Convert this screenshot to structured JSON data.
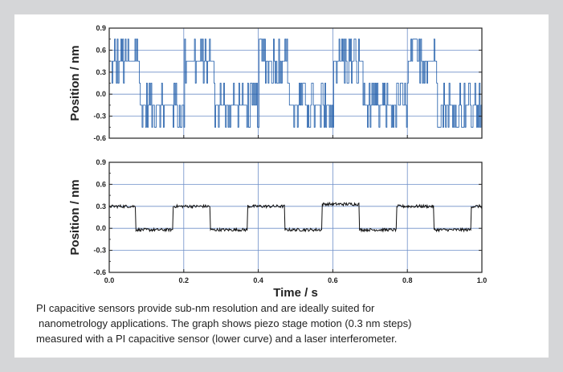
{
  "chart_data": [
    {
      "type": "line",
      "ylabel": "Position / nm",
      "xlim": [
        0.0,
        1.0
      ],
      "ylim": [
        -0.6,
        0.9
      ],
      "yticks": [
        -0.6,
        -0.3,
        0.0,
        0.3,
        0.6,
        0.9
      ],
      "grid": true,
      "color": "#1c5aa8",
      "series": [
        {
          "description_of_signal": "quantized noisy step signal, levels ~0.45 (high) and ~-0.15 (low), period 0.2 s",
          "step_segments": [
            {
              "x_start": 0.0,
              "x_end": 0.08,
              "level": 0.45
            },
            {
              "x_start": 0.08,
              "x_end": 0.2,
              "level": -0.15
            },
            {
              "x_start": 0.2,
              "x_end": 0.28,
              "level": 0.45
            },
            {
              "x_start": 0.28,
              "x_end": 0.4,
              "level": -0.15
            },
            {
              "x_start": 0.4,
              "x_end": 0.48,
              "level": 0.45
            },
            {
              "x_start": 0.48,
              "x_end": 0.6,
              "level": -0.15
            },
            {
              "x_start": 0.6,
              "x_end": 0.68,
              "level": 0.45
            },
            {
              "x_start": 0.68,
              "x_end": 0.8,
              "level": -0.15
            },
            {
              "x_start": 0.8,
              "x_end": 0.88,
              "level": 0.45
            },
            {
              "x_start": 0.88,
              "x_end": 1.0,
              "level": -0.15
            }
          ],
          "noise_levels": [
            -0.45,
            -0.15,
            0.15,
            0.45,
            0.75
          ]
        }
      ]
    },
    {
      "type": "line",
      "xlabel": "Time / s",
      "ylabel": "Position / nm",
      "xlim": [
        0.0,
        1.0
      ],
      "ylim": [
        -0.6,
        0.9
      ],
      "xticks": [
        0.0,
        0.2,
        0.4,
        0.6,
        0.8,
        1.0
      ],
      "yticks": [
        -0.6,
        -0.3,
        0.0,
        0.3,
        0.6,
        0.9
      ],
      "grid": true,
      "color": "#111111",
      "series": [
        {
          "step_segments": [
            {
              "x_start": 0.0,
              "x_end": 0.07,
              "level": 0.3
            },
            {
              "x_start": 0.07,
              "x_end": 0.17,
              "level": -0.02
            },
            {
              "x_start": 0.17,
              "x_end": 0.27,
              "level": 0.3
            },
            {
              "x_start": 0.27,
              "x_end": 0.37,
              "level": -0.02
            },
            {
              "x_start": 0.37,
              "x_end": 0.47,
              "level": 0.3
            },
            {
              "x_start": 0.47,
              "x_end": 0.57,
              "level": -0.02
            },
            {
              "x_start": 0.57,
              "x_end": 0.67,
              "level": 0.33
            },
            {
              "x_start": 0.67,
              "x_end": 0.77,
              "level": -0.02
            },
            {
              "x_start": 0.77,
              "x_end": 0.87,
              "level": 0.3
            },
            {
              "x_start": 0.87,
              "x_end": 0.97,
              "level": -0.02
            },
            {
              "x_start": 0.97,
              "x_end": 1.0,
              "level": 0.3
            }
          ],
          "noise_amplitude": 0.02
        }
      ]
    }
  ],
  "caption": {
    "line1": "PI capacitive sensors provide sub-nm resolution and are ideally suited for",
    "line2": "nanometrology applications. The graph shows piezo stage motion (0.3 nm steps)",
    "line3": "measured with a PI capacitive sensor (lower curve) and a laser interferometer."
  }
}
